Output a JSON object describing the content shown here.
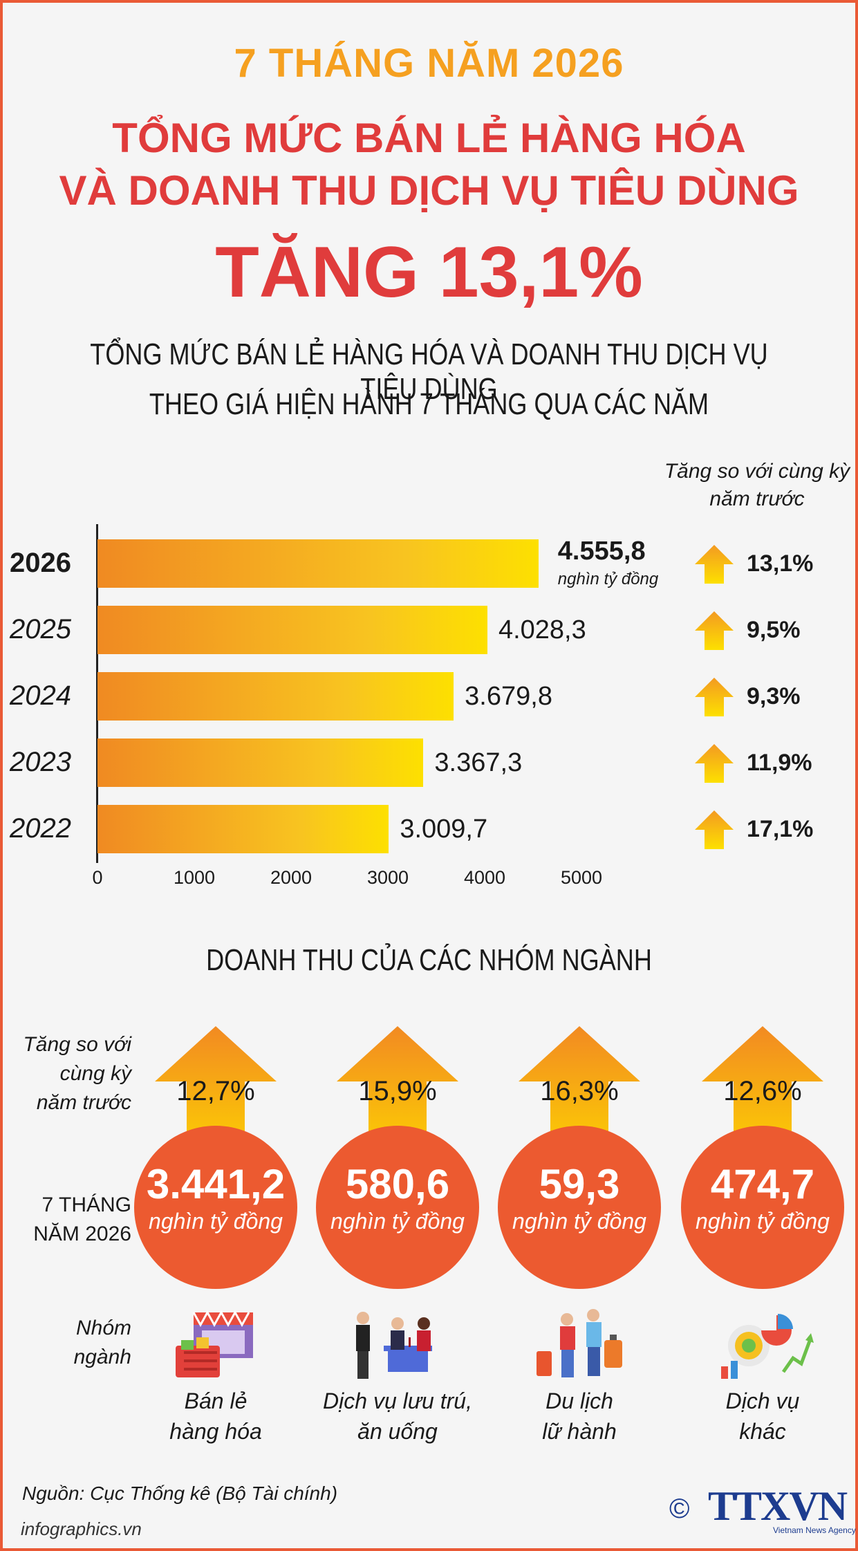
{
  "header": {
    "line1": "7 THÁNG NĂM 2026",
    "line2a": "TỔNG MỨC BÁN LẺ HÀNG HÓA",
    "line2b": "VÀ DOANH THU DỊCH VỤ TIÊU DÙNG",
    "line3": "TĂNG 13,1%"
  },
  "chart1": {
    "title_a": "TỔNG MỨC BÁN LẺ HÀNG HÓA VÀ DOANH THU DỊCH VỤ TIÊU DÙNG",
    "title_b": "THEO GIÁ HIỆN HÀNH 7 THÁNG QUA CÁC NĂM",
    "growth_header_a": "Tăng so với cùng kỳ",
    "growth_header_b": "năm trước",
    "unit": "nghìn tỷ đồng"
  },
  "chart_data": {
    "type": "bar",
    "orientation": "horizontal",
    "categories": [
      "2026",
      "2025",
      "2024",
      "2023",
      "2022"
    ],
    "values": [
      4555.8,
      4028.3,
      3679.8,
      3367.3,
      3009.7
    ],
    "value_labels": [
      "4.555,8",
      "4.028,3",
      "3.679,8",
      "3.367,3",
      "3.009,7"
    ],
    "growth": [
      "13,1%",
      "9,5%",
      "9,3%",
      "11,9%",
      "17,1%"
    ],
    "xlim": [
      0,
      5000
    ],
    "xticks": [
      "0",
      "1000",
      "2000",
      "3000",
      "4000",
      "5000"
    ],
    "colors": {
      "bar_start": "#f08a22",
      "bar_end": "#fde000",
      "arrow": "#f5a623"
    }
  },
  "sectors": {
    "title": "DOANH THU CỦA CÁC NHÓM NGÀNH",
    "label_growth": [
      "Tăng so với",
      "cùng kỳ",
      "năm trước"
    ],
    "label_period": [
      "7 THÁNG",
      "NĂM 2026"
    ],
    "label_group": [
      "Nhóm",
      "ngành"
    ],
    "unit": "nghìn tỷ đồng",
    "items": [
      {
        "pct": "12,7%",
        "value": "3.441,2",
        "name_a": "Bán lẻ",
        "name_b": "hàng hóa",
        "icon": "shopping-basket-icon"
      },
      {
        "pct": "15,9%",
        "value": "580,6",
        "name_a": "Dịch vụ lưu trú,",
        "name_b": "ăn uống",
        "icon": "restaurant-icon"
      },
      {
        "pct": "16,3%",
        "value": "59,3",
        "name_a": "Du lịch",
        "name_b": "lữ hành",
        "icon": "travel-icon"
      },
      {
        "pct": "12,6%",
        "value": "474,7",
        "name_a": "Dịch vụ",
        "name_b": "khác",
        "icon": "services-chart-icon"
      }
    ],
    "accent": "#ec5a30"
  },
  "footer": {
    "source": "Nguồn: Cục Thống kê (Bộ Tài chính)",
    "site": "infographics.vn",
    "copyright": "©",
    "logo": "TTXVN",
    "logo_sub": "Vietnam News Agency"
  }
}
